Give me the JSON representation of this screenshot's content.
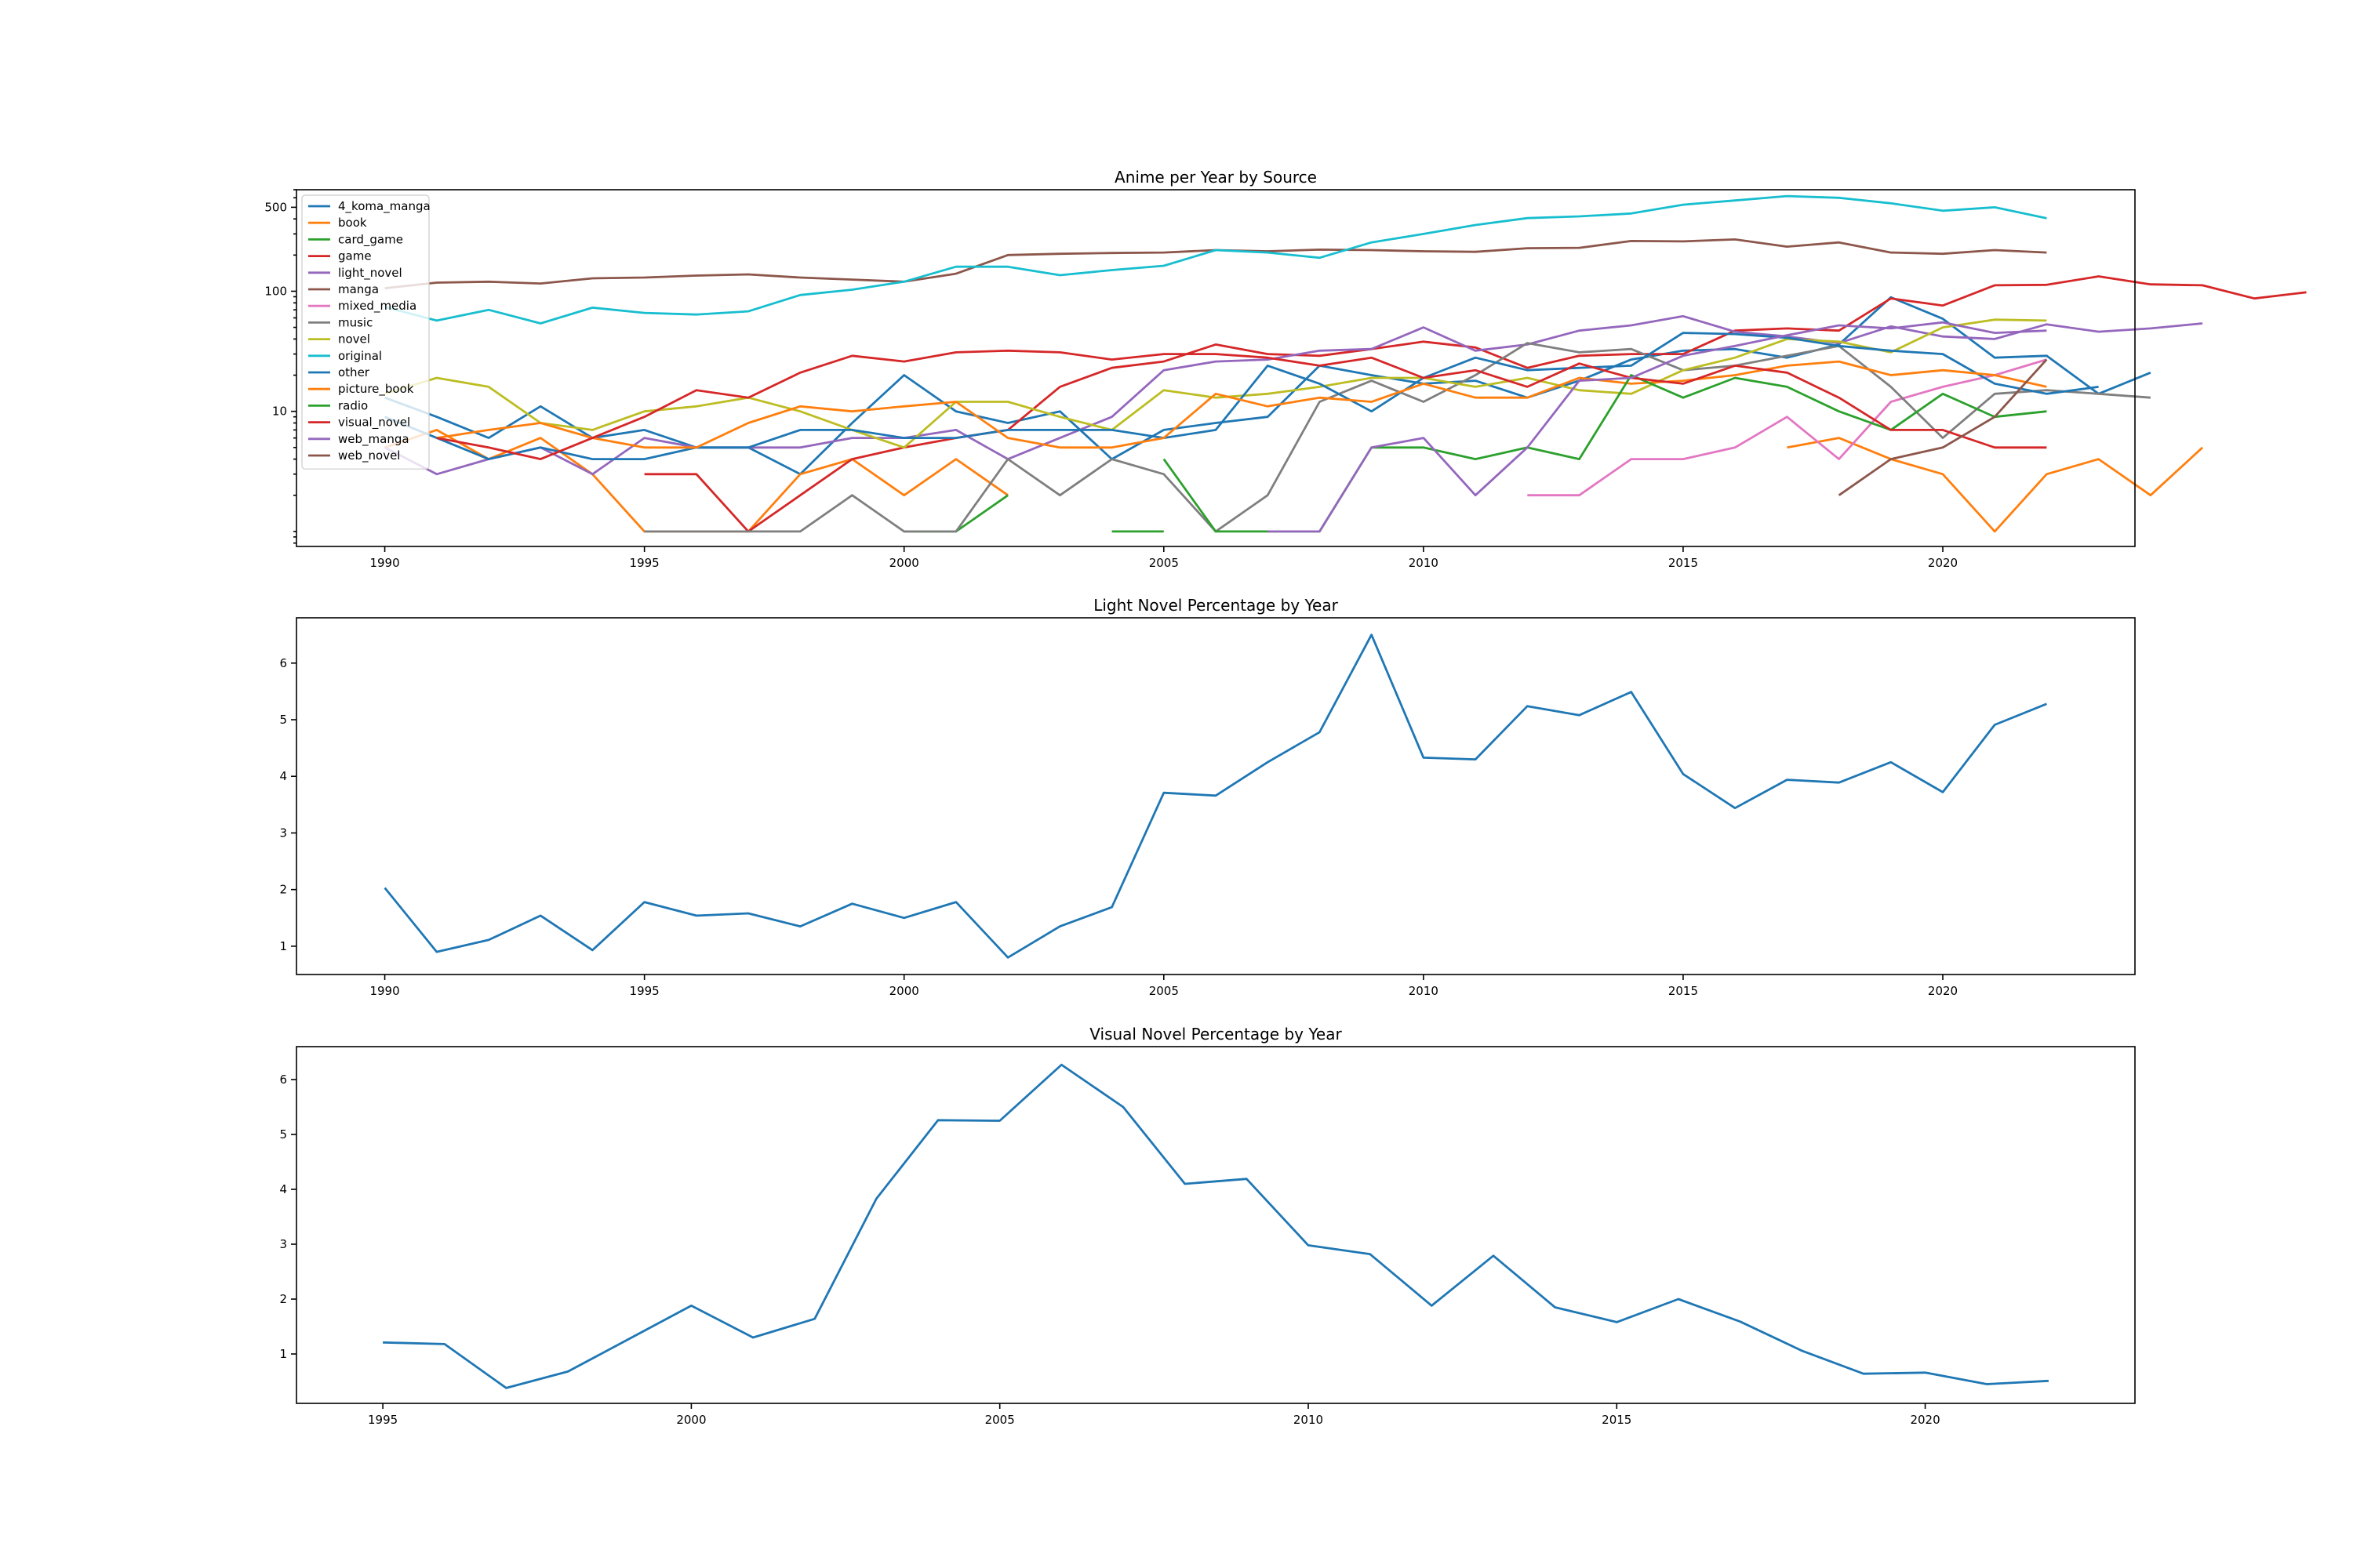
{
  "chart_data": [
    {
      "type": "line",
      "title": "Anime per Year by Source",
      "xlabel": "",
      "ylabel": "",
      "yscale": "log",
      "xlim": [
        1988.3,
        2023.7
      ],
      "ylim": [
        0.75,
        700
      ],
      "xticks": [
        1990,
        1995,
        2000,
        2005,
        2010,
        2015,
        2020
      ],
      "yticks": [
        {
          "value": 10,
          "label": "10"
        },
        {
          "value": 100,
          "label": "100"
        },
        {
          "value": 500,
          "label": "500"
        }
      ],
      "grid": false,
      "legend_position": "top-left",
      "x_start": 1990,
      "series": [
        {
          "name": "4_koma_manga",
          "color": "#1f77b4",
          "values": [
            13,
            9,
            6,
            11,
            6,
            7,
            5,
            5,
            3,
            8,
            20,
            10,
            8,
            10,
            4,
            7,
            8,
            9,
            24,
            20,
            17,
            18,
            13,
            18,
            27,
            32,
            33,
            28,
            36,
            89,
            59,
            28,
            29,
            14,
            21
          ]
        },
        {
          "name": "book",
          "color": "#ff7f0e",
          "values": [
            5,
            7,
            4,
            6,
            3,
            1,
            1,
            1,
            3,
            4,
            2,
            4,
            2,
            null,
            null,
            null,
            null,
            null,
            null,
            null,
            null,
            null,
            null,
            null,
            null,
            null,
            null,
            5,
            6,
            4,
            3,
            1,
            3,
            4,
            2,
            5
          ]
        },
        {
          "name": "card_game",
          "color": "#2ca02c",
          "values": [
            null,
            null,
            null,
            null,
            null,
            null,
            null,
            null,
            null,
            null,
            1,
            1,
            2,
            null,
            1,
            1,
            null,
            null,
            null,
            null,
            null,
            null,
            null,
            null,
            null,
            null,
            null,
            null,
            null,
            null,
            null,
            null,
            null,
            null,
            null
          ]
        },
        {
          "name": "game",
          "color": "#d62728",
          "values": [
            null,
            null,
            null,
            null,
            null,
            3,
            3,
            1,
            2,
            4,
            5,
            6,
            7,
            16,
            23,
            26,
            36,
            30,
            29,
            33,
            38,
            34,
            23,
            29,
            30,
            30,
            47,
            49,
            47,
            87,
            76,
            112,
            113,
            133,
            114,
            112,
            87,
            98
          ]
        },
        {
          "name": "light_novel",
          "color": "#9467bd",
          "values": [
            5,
            3,
            4,
            5,
            3,
            6,
            5,
            5,
            5,
            6,
            6,
            7,
            4,
            6,
            9,
            22,
            26,
            27,
            32,
            33,
            50,
            32,
            36,
            47,
            52,
            62,
            46,
            42,
            37,
            51,
            42,
            40,
            53,
            46,
            49,
            54
          ]
        },
        {
          "name": "manga",
          "color": "#8c564b",
          "values": [
            106,
            118,
            120,
            116,
            128,
            130,
            135,
            138,
            130,
            125,
            120,
            140,
            200,
            205,
            208,
            210,
            220,
            215,
            222,
            220,
            215,
            213,
            228,
            230,
            262,
            260,
            270,
            235,
            255,
            210,
            205,
            220,
            210
          ]
        },
        {
          "name": "mixed_media",
          "color": "#e377c2",
          "values": [
            null,
            null,
            null,
            null,
            null,
            null,
            null,
            null,
            null,
            null,
            null,
            null,
            null,
            null,
            null,
            null,
            null,
            null,
            null,
            null,
            null,
            null,
            2,
            2,
            4,
            4,
            5,
            9,
            4,
            12,
            16,
            20,
            27
          ]
        },
        {
          "name": "music",
          "color": "#7f7f7f",
          "values": [
            null,
            null,
            null,
            null,
            null,
            1,
            1,
            1,
            1,
            2,
            1,
            1,
            4,
            2,
            4,
            3,
            1,
            2,
            12,
            18,
            12,
            20,
            37,
            31,
            33,
            22,
            24,
            29,
            35,
            16,
            6,
            14,
            15,
            14,
            13
          ]
        },
        {
          "name": "novel",
          "color": "#bcbd22",
          "values": [
            14,
            19,
            16,
            8,
            7,
            10,
            11,
            13,
            10,
            7,
            5,
            12,
            12,
            9,
            7,
            15,
            13,
            14,
            16,
            19,
            19,
            16,
            19,
            15,
            14,
            22,
            28,
            40,
            38,
            31,
            50,
            58,
            57
          ]
        },
        {
          "name": "original",
          "color": "#17becf",
          "values": [
            74,
            57,
            70,
            54,
            73,
            66,
            64,
            68,
            93,
            103,
            120,
            160,
            160,
            136,
            150,
            163,
            220,
            210,
            190,
            255,
            300,
            356,
            406,
            420,
            444,
            525,
            570,
            620,
            600,
            540,
            468,
            500,
            405
          ]
        },
        {
          "name": "other",
          "color": "#1f77b4",
          "values": [
            9,
            6,
            4,
            5,
            4,
            4,
            5,
            5,
            7,
            7,
            6,
            6,
            7,
            7,
            7,
            6,
            7,
            24,
            17,
            10,
            19,
            28,
            22,
            23,
            24,
            45,
            44,
            41,
            35,
            32,
            30,
            17,
            14,
            16
          ]
        },
        {
          "name": "picture_book",
          "color": "#ff7f0e",
          "values": [
            null,
            6,
            7,
            8,
            6,
            5,
            5,
            8,
            11,
            10,
            11,
            12,
            6,
            5,
            5,
            6,
            14,
            11,
            13,
            12,
            17,
            13,
            13,
            19,
            17,
            18,
            20,
            24,
            26,
            20,
            22,
            20,
            16
          ]
        },
        {
          "name": "radio",
          "color": "#2ca02c",
          "values": [
            null,
            null,
            null,
            null,
            null,
            null,
            null,
            null,
            null,
            null,
            null,
            null,
            null,
            null,
            null,
            4,
            1,
            1,
            1,
            5,
            5,
            4,
            5,
            4,
            20,
            13,
            19,
            16,
            10,
            7,
            14,
            9,
            10
          ]
        },
        {
          "name": "visual_novel",
          "color": "#d62728",
          "values": [
            null,
            6,
            5,
            4,
            6,
            9,
            15,
            13,
            21,
            29,
            26,
            31,
            32,
            31,
            27,
            30,
            30,
            28,
            24,
            28,
            19,
            22,
            16,
            25,
            19,
            17,
            24,
            21,
            13,
            7,
            7,
            5,
            5
          ]
        },
        {
          "name": "web_manga",
          "color": "#9467bd",
          "values": [
            null,
            null,
            null,
            null,
            null,
            null,
            null,
            null,
            null,
            null,
            null,
            null,
            null,
            null,
            null,
            null,
            null,
            1,
            1,
            5,
            6,
            2,
            5,
            18,
            19,
            29,
            35,
            43,
            52,
            49,
            55,
            45,
            47
          ]
        },
        {
          "name": "web_novel",
          "color": "#8c564b",
          "values": [
            null,
            null,
            null,
            null,
            null,
            null,
            null,
            null,
            null,
            null,
            null,
            null,
            null,
            null,
            null,
            null,
            null,
            null,
            null,
            null,
            null,
            null,
            null,
            null,
            null,
            null,
            null,
            null,
            2,
            4,
            5,
            9,
            27
          ]
        }
      ]
    },
    {
      "type": "line",
      "title": "Light Novel Percentage by Year",
      "xlabel": "",
      "ylabel": "",
      "xlim": [
        1988.3,
        2023.7
      ],
      "ylim": [
        0.5,
        6.8
      ],
      "xticks": [
        1990,
        1995,
        2000,
        2005,
        2010,
        2015,
        2020
      ],
      "yticks": [
        1,
        2,
        3,
        4,
        5,
        6
      ],
      "grid": false,
      "x": [
        1990,
        1991,
        1992,
        1993,
        1994,
        1995,
        1996,
        1997,
        1998,
        1999,
        2000,
        2001,
        2002,
        2003,
        2004,
        2005,
        2006,
        2007,
        2008,
        2009,
        2010,
        2011,
        2012,
        2013,
        2014,
        2015,
        2016,
        2017,
        2018,
        2019,
        2020,
        2021,
        2022
      ],
      "series": [
        {
          "color": "#1f77b4",
          "values": [
            2.03,
            0.9,
            1.11,
            1.54,
            0.93,
            1.78,
            1.54,
            1.58,
            1.35,
            1.75,
            1.5,
            1.78,
            0.8,
            1.35,
            1.69,
            3.71,
            3.66,
            4.25,
            4.78,
            6.5,
            4.33,
            4.3,
            5.24,
            5.08,
            5.49,
            4.04,
            3.44,
            3.94,
            3.89,
            4.25,
            3.72,
            4.91,
            5.28
          ]
        }
      ]
    },
    {
      "type": "line",
      "title": "Visual Novel Percentage by Year",
      "xlabel": "",
      "ylabel": "",
      "xlim": [
        1993.6,
        2023.4
      ],
      "ylim": [
        0.1,
        6.6
      ],
      "xticks": [
        1995,
        2000,
        2005,
        2010,
        2015,
        2020
      ],
      "yticks": [
        1,
        2,
        3,
        4,
        5,
        6
      ],
      "grid": false,
      "x": [
        1995,
        1996,
        1997,
        1998,
        1999,
        2000,
        2001,
        2002,
        2003,
        2004,
        2005,
        2006,
        2007,
        2008,
        2009,
        2010,
        2011,
        2012,
        2013,
        2014,
        2015,
        2016,
        2017,
        2018,
        2019,
        2020,
        2021,
        2022
      ],
      "series": [
        {
          "color": "#1f77b4",
          "values": [
            1.21,
            1.18,
            0.38,
            0.68,
            1.28,
            1.88,
            1.3,
            1.64,
            3.83,
            5.26,
            5.25,
            6.27,
            5.5,
            4.1,
            4.19,
            2.98,
            2.82,
            1.88,
            2.79,
            1.85,
            1.58,
            2.0,
            1.59,
            1.06,
            0.64,
            0.66,
            0.45,
            0.51
          ]
        }
      ]
    }
  ]
}
